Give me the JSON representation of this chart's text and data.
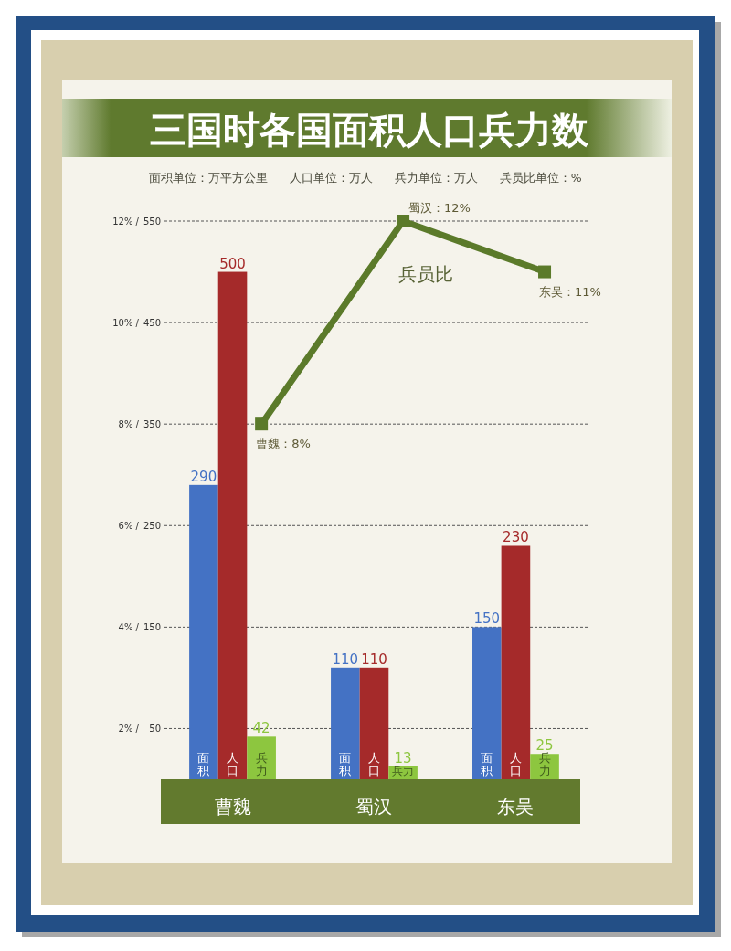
{
  "chart_data": {
    "type": "bar",
    "title": "三国时各国面积人口兵力数",
    "subtitle": "面积单位：万平方公里      人口单位：万人      兵力单位：万人      兵员比单位：%",
    "categories": [
      "曹魏",
      "蜀汉",
      "东吴"
    ],
    "series": [
      {
        "name": "面积",
        "color": "#4472c4",
        "values": [
          290,
          110,
          150
        ]
      },
      {
        "name": "人口",
        "color": "#a52a2a",
        "values": [
          500,
          110,
          230
        ]
      },
      {
        "name": "兵力",
        "color": "#8dc63f",
        "values": [
          42,
          13,
          25
        ]
      },
      {
        "name": "兵员比",
        "type": "line",
        "axis": "y2",
        "color": "#5b7a2a",
        "values": [
          8,
          12,
          11
        ],
        "value_labels": [
          "曹魏：8%",
          "蜀汉：12%",
          "东吴：11%"
        ]
      }
    ],
    "ylim": [
      0,
      550
    ],
    "yticks": [
      50,
      150,
      250,
      350,
      450,
      550
    ],
    "y2lim": [
      1,
      12
    ],
    "y2ticks": [
      {
        "value": 2,
        "label": "2% /"
      },
      {
        "value": 4,
        "label": "4% /"
      },
      {
        "value": 6,
        "label": "6% /"
      },
      {
        "value": 8,
        "label": "8% /"
      },
      {
        "value": 10,
        "label": "10% /"
      },
      {
        "value": 12,
        "label": "12% /"
      }
    ],
    "grid": "y",
    "marker": "square",
    "data_labels": true
  }
}
